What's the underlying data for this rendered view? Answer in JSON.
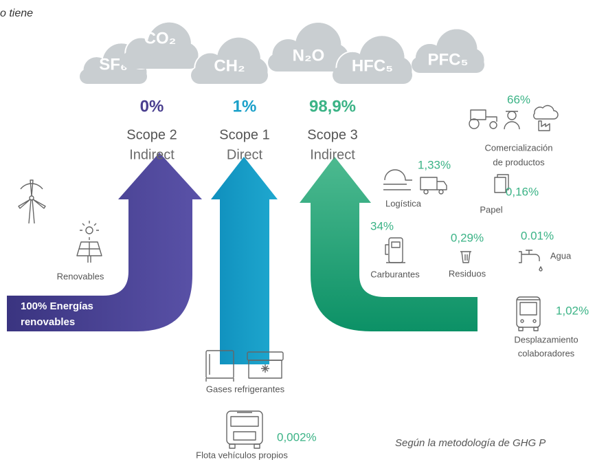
{
  "header": {
    "text": "o tiene"
  },
  "gases": [
    "CO₂",
    "SF₆",
    "CH₂",
    "N₂O",
    "HFC₅",
    "PFC₅"
  ],
  "scopes": [
    {
      "percent": "0%",
      "title": "Scope 2",
      "kind": "Indirect"
    },
    {
      "percent": "1%",
      "title": "Scope 1",
      "kind": "Direct"
    },
    {
      "percent": "98,9%",
      "title": "Scope 3",
      "kind": "Indirect"
    }
  ],
  "scope2": {
    "label": "Renovables",
    "banner": [
      "100% Energías",
      "renovables"
    ]
  },
  "scope1": {
    "items": [
      {
        "label": "Gases refrigerantes"
      },
      {
        "percent": "0,002%",
        "label": "Flota vehículos propios"
      }
    ]
  },
  "scope3": {
    "items": [
      {
        "percent": "66%",
        "label": [
          "Comercialización",
          "de productos"
        ]
      },
      {
        "percent": "1,33%",
        "label": [
          "Logística"
        ]
      },
      {
        "percent": "0,16%",
        "label": [
          "Papel"
        ]
      },
      {
        "percent": "34%",
        "label": [
          "Carburantes"
        ]
      },
      {
        "percent": "0,29%",
        "label": [
          "Residuos"
        ]
      },
      {
        "percent": "0.01%",
        "label": [
          "Agua"
        ]
      },
      {
        "percent": "1,02%",
        "label": [
          "Desplazamiento",
          "colaboradores"
        ]
      }
    ]
  },
  "footer": {
    "text": "Según la metodología de GHG P"
  }
}
